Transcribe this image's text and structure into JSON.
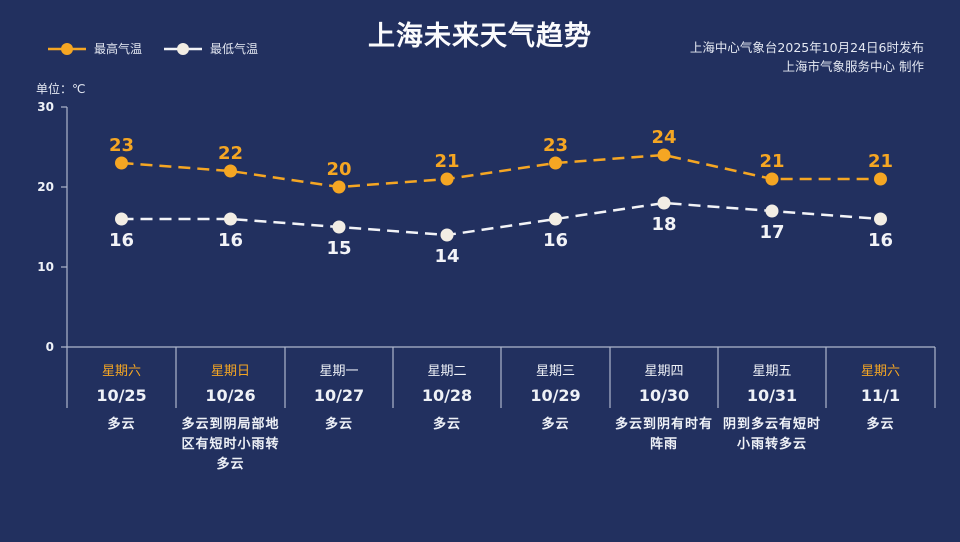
{
  "header": {
    "title": "上海未来天气趋势",
    "source_line1": "上海中心气象台2025年10月24日6时发布",
    "source_line2": "上海市气象服务中心  制作"
  },
  "legend": {
    "high_label": "最高气温",
    "low_label": "最低气温"
  },
  "axis": {
    "unit_label": "单位：℃",
    "ticks": [
      "30",
      "20",
      "10",
      "0"
    ]
  },
  "colors": {
    "background": "#22305f",
    "high": "#f5a623",
    "low": "#f2f3f7",
    "weekend_text": "#f5a623",
    "axis": "#aeb6cc"
  },
  "days": [
    {
      "weekday": "星期六",
      "date": "10/25",
      "weather": "多云",
      "weekend": true
    },
    {
      "weekday": "星期日",
      "date": "10/26",
      "weather": "多云到阴局部地区有短时小雨转多云",
      "weekend": true
    },
    {
      "weekday": "星期一",
      "date": "10/27",
      "weather": "多云",
      "weekend": false
    },
    {
      "weekday": "星期二",
      "date": "10/28",
      "weather": "多云",
      "weekend": false
    },
    {
      "weekday": "星期三",
      "date": "10/29",
      "weather": "多云",
      "weekend": false
    },
    {
      "weekday": "星期四",
      "date": "10/30",
      "weather": "多云到阴有时有阵雨",
      "weekend": false
    },
    {
      "weekday": "星期五",
      "date": "10/31",
      "weather": "阴到多云有短时小雨转多云",
      "weekend": false
    },
    {
      "weekday": "星期六",
      "date": "11/1",
      "weather": "多云",
      "weekend": true
    }
  ],
  "chart_data": {
    "type": "line",
    "title": "上海未来天气趋势",
    "categories": [
      "10/25",
      "10/26",
      "10/27",
      "10/28",
      "10/29",
      "10/30",
      "10/31",
      "11/1"
    ],
    "series": [
      {
        "name": "最高气温",
        "values": [
          23,
          22,
          20,
          21,
          23,
          24,
          21,
          21
        ],
        "color": "#f5a623",
        "style": "dashed"
      },
      {
        "name": "最低气温",
        "values": [
          16,
          16,
          15,
          14,
          16,
          18,
          17,
          16
        ],
        "color": "#f2f3f7",
        "style": "dashed"
      }
    ],
    "xlabel": "",
    "ylabel": "单位：℃",
    "ylim": [
      0,
      30
    ],
    "yticks": [
      0,
      10,
      20,
      30
    ],
    "grid": false,
    "legend_position": "top-left",
    "data_labels": true
  }
}
